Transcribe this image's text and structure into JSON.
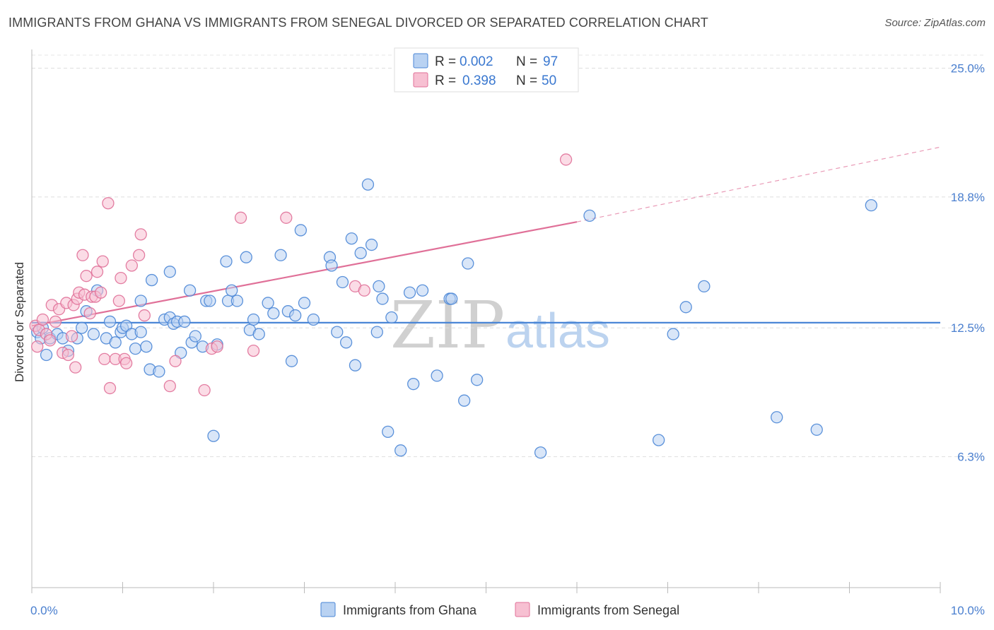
{
  "title": "IMMIGRANTS FROM GHANA VS IMMIGRANTS FROM SENEGAL DIVORCED OR SEPARATED CORRELATION CHART",
  "source": "Source: ZipAtlas.com",
  "watermark": {
    "zip": "ZIP",
    "atlas": "atlas"
  },
  "colors": {
    "ghana": "#4a86d6",
    "ghana_fill": "#b9d2f2",
    "senegal": "#e07098",
    "senegal_fill": "#f7c0d2",
    "axis_text": "#4a7fcf",
    "grid": "#dcdcdc"
  },
  "legend": {
    "rows": [
      {
        "r_label": "R =",
        "r_value": "0.002",
        "n_label": "N =",
        "n_value": "97"
      },
      {
        "r_label": "R =",
        "r_value": "0.398",
        "n_label": "N =",
        "n_value": "50"
      }
    ]
  },
  "bottom_legend": [
    "Immigrants from Ghana",
    "Immigrants from Senegal"
  ],
  "chart_data": {
    "type": "scatter",
    "title": "IMMIGRANTS FROM GHANA VS IMMIGRANTS FROM SENEGAL DIVORCED OR SEPARATED CORRELATION CHART",
    "xlabel": "",
    "ylabel": "Divorced or Separated",
    "xlim": [
      0,
      10
    ],
    "ylim": [
      0,
      25.9
    ],
    "x_tick_labels": [
      "0.0%",
      "10.0%"
    ],
    "y_ticks": [
      6.3,
      12.5,
      18.8,
      25.0
    ],
    "y_tick_labels": [
      "6.3%",
      "12.5%",
      "18.8%",
      "25.0%"
    ],
    "grid": true,
    "legend_position": "top-center",
    "series": [
      {
        "name": "Immigrants from Ghana",
        "color": "#4a86d6",
        "trend": {
          "x": [
            0.0,
            10.0
          ],
          "y": [
            12.75,
            12.75
          ]
        },
        "points": [
          [
            0.06,
            12.3
          ],
          [
            0.1,
            12.0
          ],
          [
            0.12,
            12.5
          ],
          [
            0.16,
            11.2
          ],
          [
            0.2,
            12.0
          ],
          [
            0.28,
            12.2
          ],
          [
            0.34,
            12.0
          ],
          [
            0.4,
            11.4
          ],
          [
            0.5,
            12.0
          ],
          [
            0.55,
            12.5
          ],
          [
            0.6,
            13.3
          ],
          [
            0.68,
            12.2
          ],
          [
            0.72,
            14.3
          ],
          [
            0.82,
            12.0
          ],
          [
            0.86,
            12.8
          ],
          [
            0.92,
            11.8
          ],
          [
            0.98,
            12.3
          ],
          [
            1.0,
            12.5
          ],
          [
            1.04,
            12.6
          ],
          [
            1.1,
            12.2
          ],
          [
            1.14,
            11.5
          ],
          [
            1.2,
            13.8
          ],
          [
            1.2,
            12.3
          ],
          [
            1.26,
            11.6
          ],
          [
            1.3,
            10.5
          ],
          [
            1.32,
            14.8
          ],
          [
            1.4,
            10.4
          ],
          [
            1.46,
            12.9
          ],
          [
            1.52,
            13.0
          ],
          [
            1.52,
            15.2
          ],
          [
            1.56,
            12.7
          ],
          [
            1.6,
            12.8
          ],
          [
            1.64,
            11.3
          ],
          [
            1.68,
            12.8
          ],
          [
            1.74,
            14.3
          ],
          [
            1.76,
            11.8
          ],
          [
            1.8,
            12.1
          ],
          [
            1.88,
            11.6
          ],
          [
            1.92,
            13.8
          ],
          [
            1.96,
            13.8
          ],
          [
            2.0,
            7.3
          ],
          [
            2.04,
            11.7
          ],
          [
            2.14,
            15.7
          ],
          [
            2.16,
            13.8
          ],
          [
            2.2,
            14.3
          ],
          [
            2.26,
            13.8
          ],
          [
            2.36,
            15.9
          ],
          [
            2.4,
            12.4
          ],
          [
            2.44,
            12.9
          ],
          [
            2.5,
            12.2
          ],
          [
            2.6,
            13.7
          ],
          [
            2.66,
            13.2
          ],
          [
            2.74,
            16.0
          ],
          [
            2.82,
            13.3
          ],
          [
            2.86,
            10.9
          ],
          [
            2.9,
            13.1
          ],
          [
            2.96,
            17.2
          ],
          [
            3.0,
            13.7
          ],
          [
            3.1,
            12.9
          ],
          [
            3.28,
            15.9
          ],
          [
            3.3,
            15.5
          ],
          [
            3.36,
            12.3
          ],
          [
            3.42,
            14.7
          ],
          [
            3.46,
            11.8
          ],
          [
            3.52,
            16.8
          ],
          [
            3.56,
            10.7
          ],
          [
            3.62,
            16.1
          ],
          [
            3.7,
            19.4
          ],
          [
            3.74,
            16.5
          ],
          [
            3.8,
            12.3
          ],
          [
            3.82,
            14.5
          ],
          [
            3.86,
            13.9
          ],
          [
            3.92,
            7.5
          ],
          [
            3.96,
            13.0
          ],
          [
            4.06,
            6.6
          ],
          [
            4.16,
            14.2
          ],
          [
            4.2,
            9.8
          ],
          [
            4.3,
            14.3
          ],
          [
            4.46,
            10.2
          ],
          [
            4.6,
            13.9
          ],
          [
            4.62,
            13.9
          ],
          [
            4.76,
            9.0
          ],
          [
            4.8,
            15.6
          ],
          [
            4.9,
            10.0
          ],
          [
            5.6,
            6.5
          ],
          [
            6.14,
            17.9
          ],
          [
            6.9,
            7.1
          ],
          [
            7.06,
            12.2
          ],
          [
            7.2,
            13.5
          ],
          [
            7.4,
            14.5
          ],
          [
            8.2,
            8.2
          ],
          [
            8.64,
            7.6
          ],
          [
            9.24,
            18.4
          ]
        ]
      },
      {
        "name": "Immigrants from Senegal",
        "color": "#e07098",
        "trend": {
          "x": [
            0.0,
            6.0
          ],
          "y": [
            12.6,
            17.6
          ],
          "extension": {
            "x": [
              6.0,
              10.0
            ],
            "y": [
              17.6,
              21.2
            ]
          }
        },
        "points": [
          [
            0.04,
            12.6
          ],
          [
            0.06,
            11.6
          ],
          [
            0.08,
            12.4
          ],
          [
            0.12,
            12.9
          ],
          [
            0.16,
            12.2
          ],
          [
            0.2,
            11.9
          ],
          [
            0.22,
            13.6
          ],
          [
            0.26,
            12.8
          ],
          [
            0.3,
            13.4
          ],
          [
            0.34,
            11.3
          ],
          [
            0.38,
            13.7
          ],
          [
            0.4,
            11.2
          ],
          [
            0.44,
            12.1
          ],
          [
            0.46,
            13.6
          ],
          [
            0.48,
            10.6
          ],
          [
            0.5,
            13.9
          ],
          [
            0.52,
            14.2
          ],
          [
            0.56,
            16.0
          ],
          [
            0.58,
            14.1
          ],
          [
            0.6,
            15.0
          ],
          [
            0.64,
            13.2
          ],
          [
            0.66,
            14.0
          ],
          [
            0.7,
            14.0
          ],
          [
            0.72,
            15.2
          ],
          [
            0.76,
            14.2
          ],
          [
            0.78,
            15.7
          ],
          [
            0.8,
            11.0
          ],
          [
            0.84,
            18.5
          ],
          [
            0.86,
            9.6
          ],
          [
            0.92,
            11.0
          ],
          [
            0.96,
            13.8
          ],
          [
            0.98,
            14.9
          ],
          [
            1.02,
            11.0
          ],
          [
            1.04,
            10.8
          ],
          [
            1.1,
            15.5
          ],
          [
            1.18,
            16.0
          ],
          [
            1.2,
            17.0
          ],
          [
            1.24,
            13.1
          ],
          [
            1.52,
            9.7
          ],
          [
            1.58,
            10.9
          ],
          [
            1.9,
            9.5
          ],
          [
            1.98,
            11.5
          ],
          [
            2.04,
            11.6
          ],
          [
            2.3,
            17.8
          ],
          [
            2.44,
            11.4
          ],
          [
            2.8,
            17.8
          ],
          [
            3.56,
            14.5
          ],
          [
            3.66,
            14.3
          ],
          [
            5.88,
            20.6
          ]
        ]
      }
    ]
  }
}
